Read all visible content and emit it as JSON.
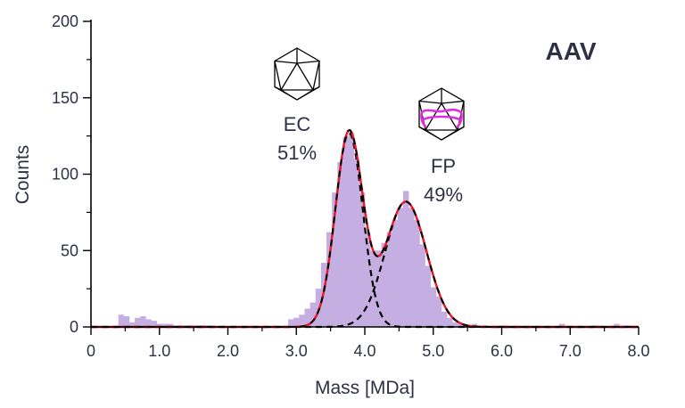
{
  "chart_data": {
    "type": "bar",
    "title": "",
    "corner_label": "AAV",
    "xlabel": "Mass [MDa]",
    "ylabel": "Counts",
    "xlim": [
      0,
      8
    ],
    "ylim": [
      0,
      200
    ],
    "x_ticks": [
      0,
      1,
      2,
      3,
      4,
      5,
      6,
      7,
      8
    ],
    "x_tick_labels": [
      "0",
      "1.0",
      "2.0",
      "3.0",
      "4.0",
      "5.0",
      "6.0",
      "7.0",
      "8.0"
    ],
    "y_ticks": [
      0,
      50,
      100,
      150,
      200
    ],
    "y_tick_labels": [
      "0",
      "50",
      "100",
      "150",
      "200"
    ],
    "grid": false,
    "histogram": {
      "bin_width": 0.08,
      "color": "#c5aee2",
      "bins": [
        {
          "x": 0.44,
          "count": 8
        },
        {
          "x": 0.52,
          "count": 7
        },
        {
          "x": 0.6,
          "count": 3
        },
        {
          "x": 0.68,
          "count": 6
        },
        {
          "x": 0.76,
          "count": 7
        },
        {
          "x": 0.84,
          "count": 5
        },
        {
          "x": 0.92,
          "count": 4
        },
        {
          "x": 1.0,
          "count": 2
        },
        {
          "x": 1.08,
          "count": 2
        },
        {
          "x": 1.16,
          "count": 2
        },
        {
          "x": 1.24,
          "count": 1
        },
        {
          "x": 1.32,
          "count": 1
        },
        {
          "x": 1.4,
          "count": 1
        },
        {
          "x": 1.48,
          "count": 1
        },
        {
          "x": 1.56,
          "count": 1
        },
        {
          "x": 1.64,
          "count": 1
        },
        {
          "x": 1.72,
          "count": 1
        },
        {
          "x": 2.92,
          "count": 5
        },
        {
          "x": 3.0,
          "count": 6
        },
        {
          "x": 3.08,
          "count": 8
        },
        {
          "x": 3.16,
          "count": 12
        },
        {
          "x": 3.24,
          "count": 16
        },
        {
          "x": 3.32,
          "count": 25
        },
        {
          "x": 3.4,
          "count": 42
        },
        {
          "x": 3.48,
          "count": 62
        },
        {
          "x": 3.56,
          "count": 88
        },
        {
          "x": 3.64,
          "count": 108
        },
        {
          "x": 3.72,
          "count": 124
        },
        {
          "x": 3.8,
          "count": 127
        },
        {
          "x": 3.88,
          "count": 110
        },
        {
          "x": 3.96,
          "count": 88
        },
        {
          "x": 4.04,
          "count": 62
        },
        {
          "x": 4.12,
          "count": 50
        },
        {
          "x": 4.2,
          "count": 50
        },
        {
          "x": 4.28,
          "count": 55
        },
        {
          "x": 4.36,
          "count": 62
        },
        {
          "x": 4.44,
          "count": 70
        },
        {
          "x": 4.52,
          "count": 78
        },
        {
          "x": 4.6,
          "count": 89
        },
        {
          "x": 4.68,
          "count": 78
        },
        {
          "x": 4.76,
          "count": 70
        },
        {
          "x": 4.84,
          "count": 54
        },
        {
          "x": 4.92,
          "count": 40
        },
        {
          "x": 5.0,
          "count": 26
        },
        {
          "x": 5.08,
          "count": 20
        },
        {
          "x": 5.16,
          "count": 10
        },
        {
          "x": 5.24,
          "count": 6
        },
        {
          "x": 5.32,
          "count": 3
        },
        {
          "x": 5.4,
          "count": 2
        },
        {
          "x": 5.48,
          "count": 1
        },
        {
          "x": 5.6,
          "count": 2
        },
        {
          "x": 5.76,
          "count": 1
        },
        {
          "x": 6.0,
          "count": 1
        },
        {
          "x": 6.88,
          "count": 2
        },
        {
          "x": 7.36,
          "count": 1
        },
        {
          "x": 7.68,
          "count": 2
        },
        {
          "x": 7.84,
          "count": 1
        }
      ]
    },
    "fits": {
      "components": [
        {
          "label": "EC",
          "percent": "51%",
          "mean": 3.77,
          "sigma": 0.2,
          "amplitude": 127
        },
        {
          "label": "FP",
          "percent": "49%",
          "mean": 4.6,
          "sigma": 0.3,
          "amplitude": 82
        }
      ],
      "component_color": "#000000",
      "component_style": "dashed",
      "sum_color": "#e8182b",
      "sum_style": "solid"
    },
    "annotations": [
      {
        "text": "EC",
        "icon": "empty-capsid-icon",
        "x": 3.77
      },
      {
        "text": "51%",
        "x": 3.77
      },
      {
        "text": "FP",
        "icon": "full-capsid-icon",
        "x": 4.6
      },
      {
        "text": "49%",
        "x": 4.6
      }
    ],
    "colors": {
      "histogram": "#c5aee2",
      "fit_sum": "#e8182b",
      "fit_component": "#000000",
      "text": "#2e3145",
      "genome": "#e02be0"
    }
  }
}
